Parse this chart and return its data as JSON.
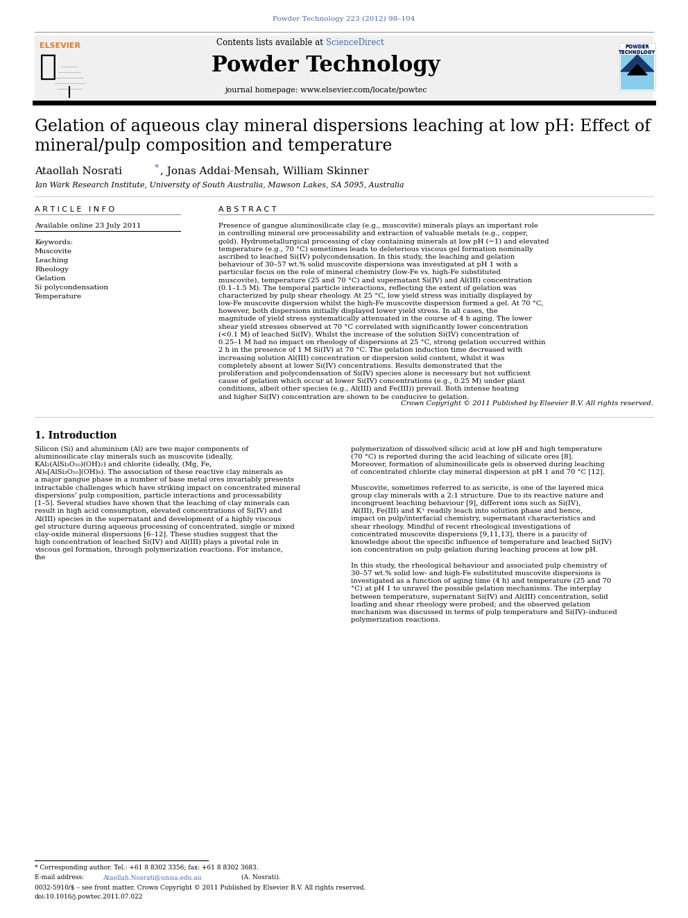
{
  "journal_ref": "Powder Technology 223 (2012) 98–104",
  "journal_ref_color": "#4169b0",
  "contents_text": "Contents lists available at ",
  "sciencedirect_text": "ScienceDirect",
  "sciencedirect_color": "#4169b0",
  "journal_name": "Powder Technology",
  "journal_homepage": "journal homepage: www.elsevier.com/locate/powtec",
  "title": "Gelation of aqueous clay mineral dispersions leaching at low pH: Effect of\nmineral/pulp composition and temperature",
  "affiliation": "Ian Wark Research Institute, University of South Australia, Mawson Lakes, SA 5095, Australia",
  "article_info_header": "A R T I C L E   I N F O",
  "abstract_header": "A B S T R A C T",
  "available_online": "Available online 23 July 2011",
  "keywords_label": "Keywords:",
  "keywords": [
    "Muscovite",
    "Leaching",
    "Rheology",
    "Gelation",
    "Si polycondensation",
    "Temperature"
  ],
  "abstract": "Presence of gangue aluminosilicate clay (e.g., muscovite) minerals plays an important role in controlling mineral ore processability and extraction of valuable metals (e.g., copper, gold). Hydrometallurgical processing of clay containing minerals at low pH (−1) and elevated temperature (e.g., 70 °C) sometimes leads to deleterious viscous gel formation nominally ascribed to leached Si(IV) polycondensation. In this study, the leaching and gelation behaviour of 30–57 wt.% solid muscovite dispersions was investigated at pH 1 with a particular focus on the role of mineral chemistry (low-Fe vs. high-Fe substituted muscovite), temperature (25 and 70 °C) and supernatant Si(IV) and Al(III) concentration (0.1–1.5 M). The temporal particle interactions, reflecting the extent of gelation was characterized by pulp shear rheology. At 25 °C, low yield stress was initially displayed by low-Fe muscovite dispersion whilst the high-Fe muscovite dispersion formed a gel. At 70 °C, however, both dispersions initially displayed lower yield stress. In all cases, the magnitude of yield stress systematically attenuated in the course of 4 h aging. The lower shear yield stresses observed at 70 °C correlated with significantly lower concentration (<0.1 M) of leached Si(IV). Whilst the increase of the solution Si(IV) concentration of 0.25–1 M had no impact on rheology of dispersions at 25 °C, strong gelation occurred within 2 h in the presence of 1 M Si(IV) at 70 °C. The gelation induction time decreased with increasing solution Al(III) concentration or dispersion solid content, whilst it was completely absent at lower Si(IV) concentrations. Results demonstrated that the proliferation and polycondensation of Si(IV) species alone is necessary but not sufficient cause of gelation which occur at lower Si(IV) concentrations (e.g., 0.25 M) under plant conditions, albeit other species (e.g., Al(III) and Fe(III)) prevail. Both intense heating and higher Si(IV) concentration are shown to be conducive to gelation.",
  "crown_copyright": "Crown Copyright © 2011 Published by Elsevier B.V. All rights reserved.",
  "intro_header": "1. Introduction",
  "intro_col1": "Silicon (Si) and aluminium (Al) are two major components of aluminosilicate clay minerals such as muscovite (ideally, KAl₂(AlSi₃O₁₀)(OH)₂) and chlorite (ideally, (Mg, Fe, Al)₆[AlSi₃O₁₀](OH)₈). The association of these reactive clay minerals as a major gangue phase in a number of base metal ores invariably presents intractable challenges which have striking impact on concentrated mineral dispersions’ pulp composition, particle interactions and processability [1–5]. Several studies have shown that the leaching of clay minerals can result in high acid consumption, elevated concentrations of Si(IV) and Al(III) species in the supernatant and development of a highly viscous gel structure during aqueous processing of concentrated, single or mixed clay-oxide mineral dispersions [6–12]. These studies suggest that the high concentration of leached Si(IV) and Al(III) plays a pivotal role in viscous gel formation, through polymerization reactions. For instance, the",
  "intro_col2": "polymerization of dissolved silicic acid at low pH and high temperature (70 °C) is reported during the acid leaching of silicate ores [8]. Moreover, formation of aluminosilicate gels is observed during leaching of concentrated chlorite clay mineral dispersion at pH 1 and 70 °C [12].\n   Muscovite, sometimes referred to as sericite, is one of the layered mica group clay minerals with a 2:1 structure. Due to its reactive nature and incongruent leaching behaviour [9], different ions such as Si(IV), Al(III), Fe(III) and K⁺ readily leach into solution phase and hence, impact on pulp/interfacial chemistry, supernatant characteristics and shear rheology. Mindful of recent rheological investigations of concentrated muscovite dispersions [9,11,13], there is a paucity of knowledge about the specific influence of temperature and leached Si(IV) ion concentration on pulp gelation during leaching process at low pH.\n   In this study, the rheological behaviour and associated pulp chemistry of 30–57 wt.% solid low- and high-Fe substituted muscovite dispersions is investigated as a function of aging time (4 h) and temperature (25 and 70 °C) at pH 1 to unravel the possible gelation mechanisms. The interplay between temperature, supernatant Si(IV) and Al(III) concentration, solid loading and shear rheology were probed; and the observed gelation mechanism was discussed in terms of pulp temperature and Si(IV)–induced polymerization reactions.",
  "footnote1": "* Corresponding author. Tel.: +61 8 8302 3356; fax: +61 8 8302 3683.",
  "footnote2": "E-mail address: Ataollah.Nosrati@unisa.edu.au (A. Nosrati).",
  "footnote3": "0032-5910/$ – see front matter. Crown Copyright © 2011 Published by Elsevier B.V. All rights reserved.",
  "footnote4": "doi:10.1016/j.powtec.2011.07.022",
  "email_color": "#4169b0",
  "background_color": "#ffffff",
  "header_bg_color": "#f0f0f0",
  "elsevier_color": "#E87722",
  "powder_tech_color": "#4169b0",
  "light_blue": "#87CEEB",
  "dark_blue": "#1a3a6b"
}
